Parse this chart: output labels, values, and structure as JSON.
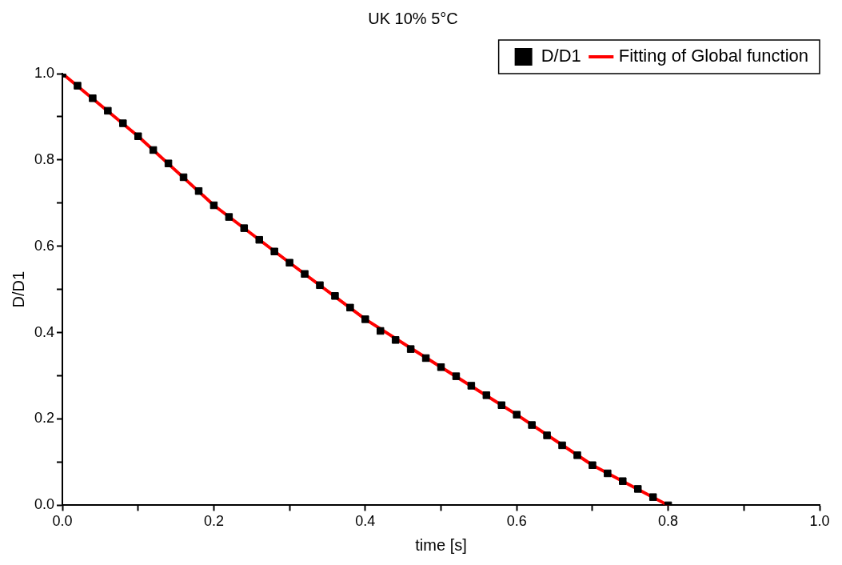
{
  "chart_data": {
    "type": "scatter",
    "title": "UK 10% 5°C",
    "xlabel": "time [s]",
    "ylabel": "D/D1",
    "xlim": [
      0,
      1
    ],
    "ylim": [
      0,
      1
    ],
    "xticks": [
      {
        "value": 0,
        "label": "0.0"
      },
      {
        "value": 0.1,
        "label": null
      },
      {
        "value": 0.2,
        "label": "0.2"
      },
      {
        "value": 0.3,
        "label": null
      },
      {
        "value": 0.4,
        "label": "0.4"
      },
      {
        "value": 0.5,
        "label": null
      },
      {
        "value": 0.6,
        "label": "0.6"
      },
      {
        "value": 0.7,
        "label": null
      },
      {
        "value": 0.8,
        "label": "0.8"
      },
      {
        "value": 0.9,
        "label": null
      },
      {
        "value": 1,
        "label": "1.0"
      }
    ],
    "yticks": [
      {
        "value": 0,
        "label": "0.0"
      },
      {
        "value": 0.1,
        "label": null
      },
      {
        "value": 0.2,
        "label": "0.2"
      },
      {
        "value": 0.3,
        "label": null
      },
      {
        "value": 0.4,
        "label": "0.4"
      },
      {
        "value": 0.5,
        "label": null
      },
      {
        "value": 0.6,
        "label": "0.6"
      },
      {
        "value": 0.7,
        "label": null
      },
      {
        "value": 0.8,
        "label": "0.8"
      },
      {
        "value": 0.9,
        "label": null
      },
      {
        "value": 1,
        "label": "1.0"
      }
    ],
    "grid": false,
    "legend": "top right",
    "series": [
      {
        "name": "D/D1",
        "marker": "square",
        "color": "#000000",
        "x": [
          0,
          0.02,
          0.04,
          0.06,
          0.08,
          0.1,
          0.12,
          0.14,
          0.16,
          0.18,
          0.2,
          0.22,
          0.24,
          0.26,
          0.28,
          0.3,
          0.32,
          0.34,
          0.36,
          0.38,
          0.4,
          0.42,
          0.44,
          0.46,
          0.48,
          0.5,
          0.52,
          0.54,
          0.56,
          0.58,
          0.6,
          0.62,
          0.64,
          0.66,
          0.68,
          0.7,
          0.72,
          0.74,
          0.76,
          0.78,
          0.8
        ],
        "values": [
          1.0,
          0.972,
          0.943,
          0.914,
          0.885,
          0.855,
          0.823,
          0.792,
          0.76,
          0.728,
          0.695,
          0.668,
          0.642,
          0.615,
          0.588,
          0.562,
          0.536,
          0.51,
          0.485,
          0.458,
          0.431,
          0.404,
          0.383,
          0.362,
          0.341,
          0.32,
          0.299,
          0.277,
          0.255,
          0.232,
          0.21,
          0.186,
          0.162,
          0.139,
          0.116,
          0.093,
          0.074,
          0.056,
          0.038,
          0.019,
          0.0
        ]
      },
      {
        "name": "Fitting of Global function",
        "type": "line",
        "marker": "none",
        "color": "#ff0000",
        "line_style": "solid",
        "x": [
          0,
          0.1,
          0.2,
          0.3,
          0.4,
          0.5,
          0.6,
          0.7,
          0.8
        ],
        "values": [
          1.0,
          0.855,
          0.695,
          0.562,
          0.431,
          0.32,
          0.21,
          0.093,
          0.0
        ]
      }
    ]
  }
}
